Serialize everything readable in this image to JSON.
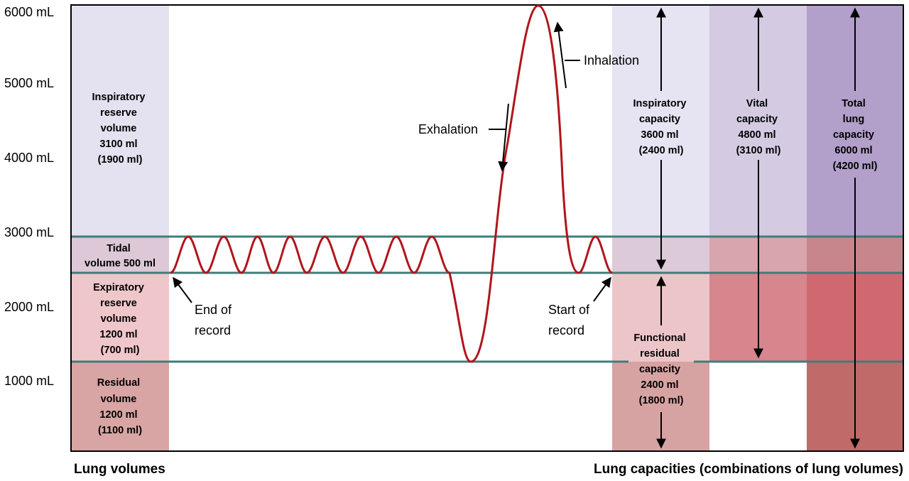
{
  "y_axis": {
    "ticks": [
      "6000 mL",
      "5000 mL",
      "4000 mL",
      "3000 mL",
      "2000 mL",
      "1000 mL"
    ]
  },
  "volumes": {
    "inspiratory_reserve": [
      "Inspiratory",
      "reserve",
      "volume",
      "3100 ml",
      "(1900 ml)"
    ],
    "tidal": [
      "Tidal",
      "volume 500 ml"
    ],
    "expiratory_reserve": [
      "Expiratory",
      "reserve",
      "volume",
      "1200 ml",
      "(700 ml)"
    ],
    "residual": [
      "Residual",
      "volume",
      "1200 ml",
      "(1100 ml)"
    ]
  },
  "capacities": {
    "inspiratory": [
      "Inspiratory",
      "capacity",
      "3600 ml",
      "(2400 ml)"
    ],
    "functional_residual": [
      "Functional",
      "residual",
      "capacity",
      "2400 ml",
      "(1800 ml)"
    ],
    "vital": [
      "Vital",
      "capacity",
      "4800 ml",
      "(3100 ml)"
    ],
    "total_lung": [
      "Total",
      "lung",
      "capacity",
      "6000 ml",
      "(4200 ml)"
    ]
  },
  "annotations": {
    "inhalation": "Inhalation",
    "exhalation": "Exhalation",
    "end_of_record": [
      "End of",
      "record"
    ],
    "start_of_record": [
      "Start of",
      "record"
    ]
  },
  "footer": {
    "left": "Lung volumes",
    "right": "Lung capacities (combinations of lung volumes)"
  },
  "colors": {
    "trace": "#b0151b",
    "level_lines": "#3f7d78",
    "irv": "#e4e1f0",
    "tidal": "#dcc8d6",
    "erv": "#efc6ca",
    "rv": "#d8a5a4",
    "ic": "#e6e3f2",
    "ic_lower": "#dccad8",
    "frc_upper": "#ecc5c9",
    "frc_lower": "#d7a3a2",
    "vc_upper": "#d4cae2",
    "vc_mid": "#d8a5ad",
    "vc_lower": "#d6868c",
    "tlc_upper": "#b29fca",
    "tlc_mid": "#c6868c",
    "tlc_low": "#d0686f",
    "tlc_bottom": "#c06a6a"
  }
}
